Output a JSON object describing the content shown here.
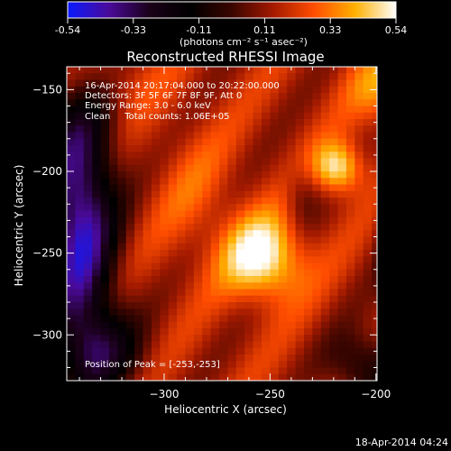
{
  "colorbar": {
    "ticks": [
      "-0.54",
      "-0.33",
      "-0.11",
      "0.11",
      "0.33",
      "0.54"
    ],
    "unit_label": "(photons cm⁻² s⁻¹ asec⁻²)",
    "colors": [
      "#0a1aff",
      "#4a0a9a",
      "#1a0018",
      "#000000",
      "#3a0500",
      "#a31a00",
      "#ff4d00",
      "#ffb000",
      "#ffffff"
    ]
  },
  "chart_data": {
    "type": "heatmap",
    "title": "Reconstructed RHESSI Image",
    "xlabel": "Heliocentric X (arcsec)",
    "ylabel": "Heliocentric Y (arcsec)",
    "xlim": [
      -346,
      -199.5
    ],
    "ylim": [
      -328,
      -136
    ],
    "x_ticks": [
      -300,
      -250,
      -200
    ],
    "x_tick_labels": [
      "−300",
      "−250",
      "−200"
    ],
    "y_ticks": [
      -150,
      -200,
      -250,
      -300
    ],
    "y_tick_labels": [
      "−150",
      "−200",
      "−250",
      "−300"
    ],
    "peak": [
      -253,
      -253
    ],
    "vmin": -0.54,
    "vmax": 0.54
  },
  "info": {
    "line1": "16-Apr-2014 20:17:04.000 to 20:22:00.000",
    "line2": "Detectors: 3F 5F 6F 7F 8F 9F, Att 0",
    "line3": "Energy Range: 3.0 - 6.0 keV",
    "line4": "Clean     Total counts: 1.06E+05",
    "peak_text": "Position of Peak = [-253,-253]"
  },
  "footer": {
    "timestamp": "18-Apr-2014 04:24"
  }
}
